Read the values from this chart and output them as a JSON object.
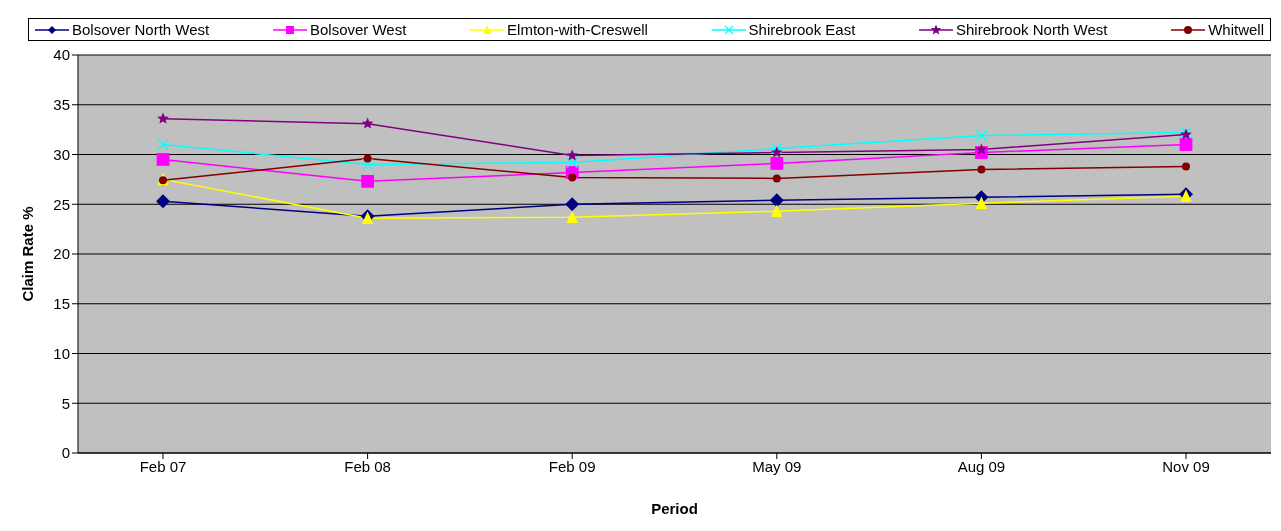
{
  "chart_data": {
    "type": "line",
    "xlabel": "Period",
    "ylabel": "Claim Rate %",
    "categories": [
      "Feb 07",
      "Feb 08",
      "Feb 09",
      "May 09",
      "Aug 09",
      "Nov 09"
    ],
    "series": [
      {
        "name": "Bolsover North West",
        "color": "#000080",
        "marker": "diamond",
        "values": [
          25.3,
          23.8,
          25.0,
          25.4,
          25.7,
          26.0
        ]
      },
      {
        "name": "Bolsover West",
        "color": "#ff00ff",
        "marker": "square",
        "values": [
          29.5,
          27.3,
          28.2,
          29.1,
          30.2,
          31.0
        ]
      },
      {
        "name": "Elmton-with-Creswell",
        "color": "#ffff00",
        "marker": "triangle",
        "values": [
          27.5,
          23.6,
          23.7,
          24.3,
          25.1,
          25.8
        ]
      },
      {
        "name": "Shirebrook East",
        "color": "#00ffff",
        "marker": "cross",
        "values": [
          31.0,
          29.0,
          29.2,
          30.6,
          31.9,
          32.2
        ]
      },
      {
        "name": "Shirebrook North West",
        "color": "#800080",
        "marker": "star",
        "values": [
          33.6,
          33.1,
          29.9,
          30.2,
          30.5,
          32.0
        ]
      },
      {
        "name": "Whitwell",
        "color": "#800000",
        "marker": "circle",
        "values": [
          27.4,
          29.6,
          27.7,
          27.6,
          28.5,
          28.8
        ]
      }
    ],
    "ylim": [
      0,
      40
    ],
    "yticks": [
      0,
      5,
      10,
      15,
      20,
      25,
      30,
      35,
      40
    ],
    "grid": "y",
    "legend": "top",
    "line_style": "solid"
  }
}
